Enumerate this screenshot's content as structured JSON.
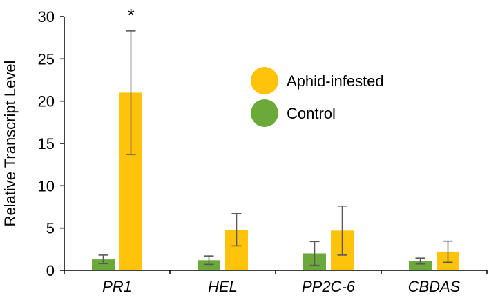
{
  "chart_data": {
    "type": "bar",
    "title": "",
    "xlabel": "",
    "ylabel": "Relative Transcript Level",
    "ylim": [
      0,
      30
    ],
    "yticks": [
      0,
      5,
      10,
      15,
      20,
      25,
      30
    ],
    "categories": [
      "PR1",
      "HEL",
      "PP2C-6",
      "CBDAS"
    ],
    "series": [
      {
        "name": "Control",
        "color": "#6BAA3A",
        "values": [
          1.3,
          1.2,
          2.0,
          1.1
        ],
        "errors": [
          0.5,
          0.5,
          1.4,
          0.35
        ]
      },
      {
        "name": "Aphid-infested",
        "color": "#FFC30B",
        "values": [
          21.0,
          4.8,
          4.7,
          2.2
        ],
        "errors": [
          7.3,
          1.9,
          2.9,
          1.25
        ]
      }
    ],
    "legend": {
      "position": "top-right",
      "entries": [
        "Aphid-infested",
        "Control"
      ]
    },
    "annotations": [
      {
        "text": "*",
        "category": "PR1",
        "series": "Aphid-infested"
      }
    ],
    "grid": false
  }
}
